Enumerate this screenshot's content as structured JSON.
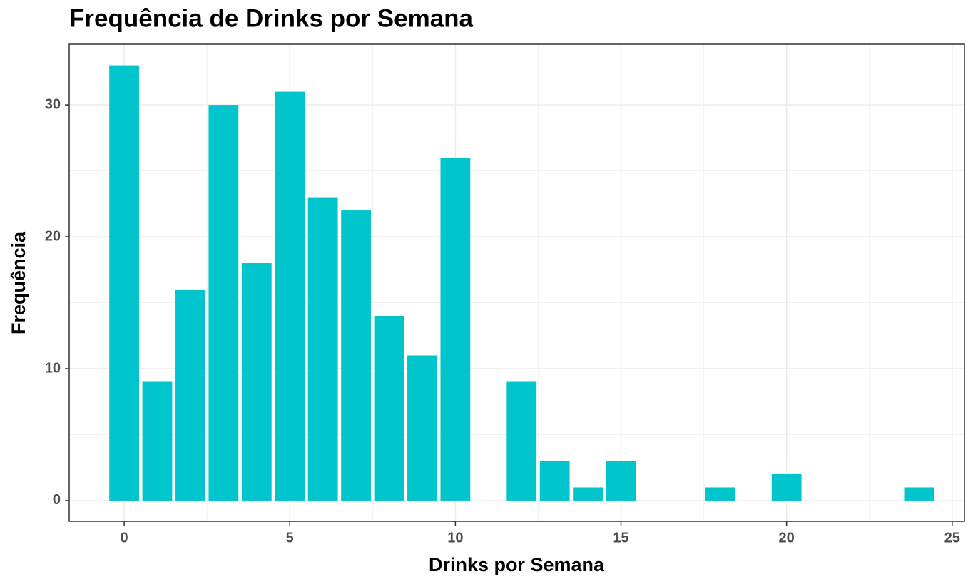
{
  "chart_data": {
    "type": "bar",
    "title": "Frequência de Drinks por Semana",
    "x_label": "Drinks por Semana",
    "y_label": "Frequência",
    "x": [
      0,
      1,
      2,
      3,
      4,
      5,
      6,
      7,
      8,
      9,
      10,
      12,
      13,
      14,
      15,
      18,
      20,
      24
    ],
    "values": [
      33,
      9,
      16,
      30,
      18,
      31,
      23,
      22,
      14,
      11,
      26,
      9,
      3,
      1,
      3,
      1,
      2,
      1
    ],
    "color": "#00c5cd",
    "xlim": [
      -1.66,
      25.37
    ],
    "xticks": [
      0,
      5,
      10,
      15,
      20,
      25
    ],
    "ylim": [
      -1.57,
      34.6
    ],
    "yticks": [
      0,
      10,
      20,
      30
    ],
    "grid": true
  }
}
